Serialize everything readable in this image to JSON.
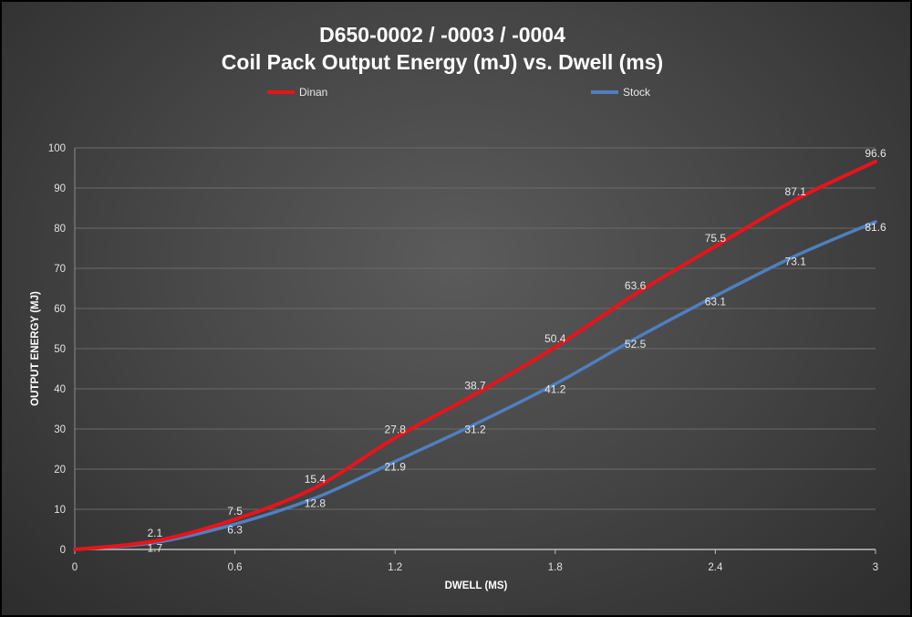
{
  "chart_data": {
    "type": "line",
    "title": "D650-0002 / -0003 / -0004",
    "subtitle": "Coil Pack Output Energy (mJ) vs. Dwell (ms)",
    "xlabel": "DWELL (MS)",
    "ylabel": "OUTPUT ENERGY (MJ)",
    "xlim": [
      0,
      3
    ],
    "ylim": [
      0,
      100
    ],
    "xticks": [
      "0",
      "0.6",
      "1.2",
      "1.8",
      "2.4",
      "3"
    ],
    "yticks": [
      "0",
      "10",
      "20",
      "30",
      "40",
      "50",
      "60",
      "70",
      "80",
      "90",
      "100"
    ],
    "grid": "horizontal",
    "legend_position": "top",
    "series": [
      {
        "name": "Dinan",
        "color": "#e8141b",
        "x": [
          0,
          0.3,
          0.6,
          0.9,
          1.2,
          1.5,
          1.8,
          2.1,
          2.4,
          2.7,
          3
        ],
        "values": [
          0,
          2.1,
          7.5,
          15.4,
          27.8,
          38.7,
          50.4,
          63.6,
          75.5,
          87.1,
          96.6
        ],
        "labels": [
          "",
          "2.1",
          "7.5",
          "15.4",
          "27.8",
          "38.7",
          "50.4",
          "63.6",
          "75.5",
          "87.1",
          "96.6"
        ]
      },
      {
        "name": "Stock",
        "color": "#4f7fbf",
        "x": [
          0,
          0.3,
          0.6,
          0.9,
          1.2,
          1.5,
          1.8,
          2.1,
          2.4,
          2.7,
          3
        ],
        "values": [
          0,
          1.7,
          6.3,
          12.8,
          21.9,
          31.2,
          41.2,
          52.5,
          63.1,
          73.1,
          81.6
        ],
        "labels": [
          "",
          "1.7",
          "6.3",
          "12.8",
          "21.9",
          "31.2",
          "41.2",
          "52.5",
          "63.1",
          "73.1",
          "81.6"
        ]
      }
    ]
  }
}
